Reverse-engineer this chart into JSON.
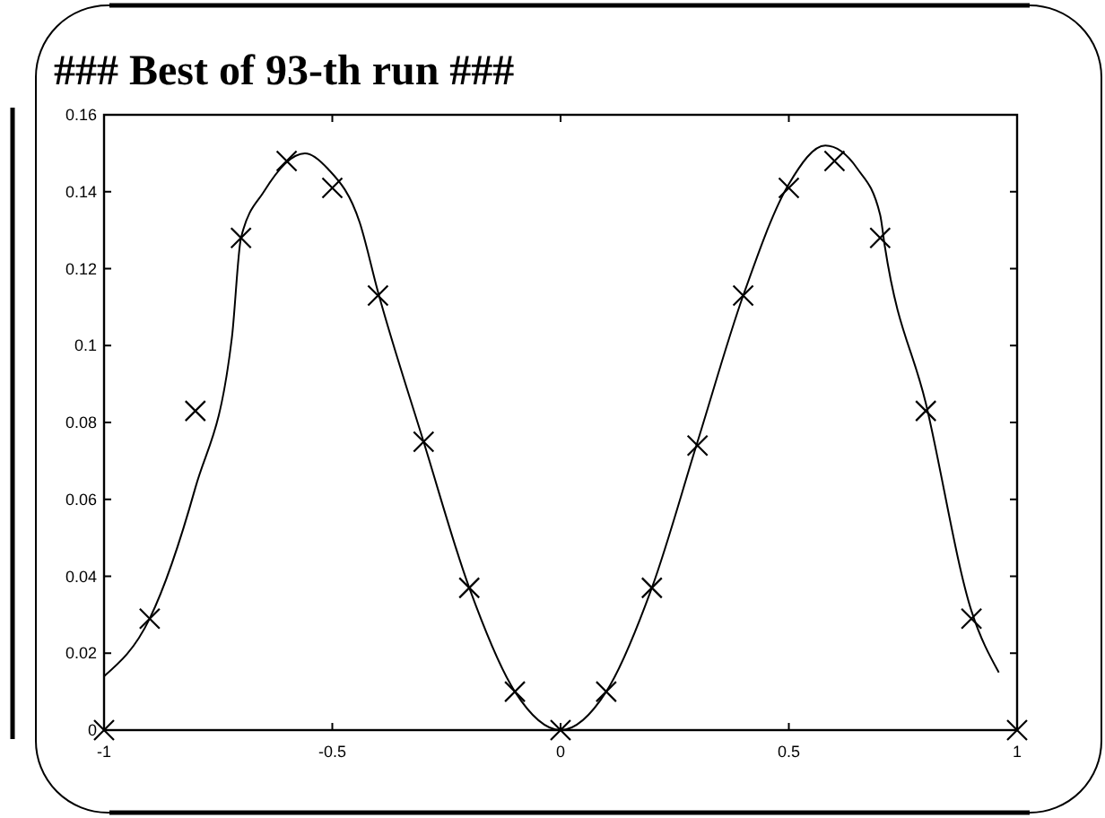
{
  "chart_data": {
    "type": "scatter",
    "title": "### Best of 93-th run ###",
    "xlim": [
      -1,
      1
    ],
    "xticks": [
      -1,
      -0.5,
      0,
      0.5,
      1
    ],
    "ylim": [
      0,
      0.16
    ],
    "yticks": [
      0,
      0.02,
      0.04,
      0.06,
      0.08,
      0.1,
      0.12,
      0.14,
      0.16
    ],
    "grid": false,
    "series": [
      {
        "marker": "cross",
        "color": "#000000",
        "x": [
          -1,
          -0.9,
          -0.8,
          -0.7,
          -0.6,
          -0.5,
          -0.4,
          -0.3,
          -0.2,
          -0.1,
          0,
          0.1,
          0.2,
          0.3,
          0.4,
          0.5,
          0.6,
          0.7,
          0.8,
          0.9,
          1
        ],
        "values": [
          0,
          0.029,
          0.083,
          0.128,
          0.148,
          0.141,
          0.113,
          0.075,
          0.037,
          0.01,
          0,
          0.01,
          0.037,
          0.074,
          0.113,
          0.141,
          0.148,
          0.128,
          0.083,
          0.029,
          0
        ]
      },
      {
        "type": "line",
        "marker": "none",
        "line_style": "solid",
        "color": "#000000",
        "x": [
          -1,
          -0.9,
          -0.8,
          -0.72,
          -0.7,
          -0.65,
          -0.56,
          -0.51,
          -0.44,
          -0.4,
          -0.3,
          -0.2,
          -0.1,
          0,
          0.1,
          0.2,
          0.3,
          0.4,
          0.5,
          0.58,
          0.65,
          0.7,
          0.71,
          0.8,
          0.9,
          0.96
        ],
        "values": [
          0.014,
          0.029,
          0.063,
          0.102,
          0.128,
          0.14,
          0.15,
          0.146,
          0.132,
          0.114,
          0.075,
          0.037,
          0.01,
          0,
          0.01,
          0.037,
          0.075,
          0.113,
          0.142,
          0.152,
          0.146,
          0.134,
          0.126,
          0.085,
          0.031,
          0.015
        ]
      }
    ]
  }
}
